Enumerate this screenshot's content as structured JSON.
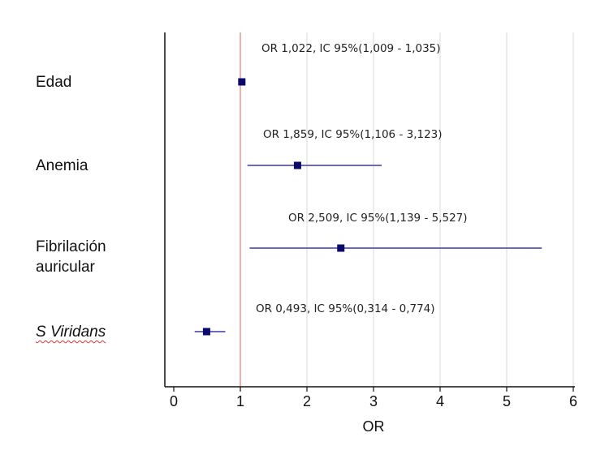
{
  "chart_data": {
    "type": "forest",
    "xlabel": "OR",
    "xlim": [
      -0.1,
      6.05
    ],
    "xticks": [
      "0",
      "1",
      "2",
      "3",
      "4",
      "5",
      "6"
    ],
    "reference_line": 1,
    "grid": "vertical",
    "colors": {
      "marker": "#0a0a6e",
      "ci_line": "#3a3aa8",
      "reference_line": "#e06060",
      "grid": "#d9d9d9",
      "axis": "#111111"
    },
    "rows": [
      {
        "label": "Edad",
        "label_lines": [
          "Edad"
        ],
        "italic": false,
        "or": 1.022,
        "ci_low": 1.009,
        "ci_high": 1.035,
        "annotation": "OR 1,022, IC 95%(1,009 - 1,035)"
      },
      {
        "label": "Anemia",
        "label_lines": [
          "Anemia"
        ],
        "italic": false,
        "or": 1.859,
        "ci_low": 1.106,
        "ci_high": 3.123,
        "annotation": "OR 1,859, IC 95%(1,106 - 3,123)"
      },
      {
        "label": "Fibrilación auricular",
        "label_lines": [
          "Fibrilación",
          "auricular"
        ],
        "italic": false,
        "or": 2.509,
        "ci_low": 1.139,
        "ci_high": 5.527,
        "annotation": "OR 2,509, IC 95%(1,139 - 5,527)"
      },
      {
        "label": "S Viridans",
        "label_lines": [
          "S Viridans"
        ],
        "italic": true,
        "or": 0.493,
        "ci_low": 0.314,
        "ci_high": 0.774,
        "annotation": "OR 0,493, IC 95%(0,314 - 0,774)"
      }
    ]
  }
}
